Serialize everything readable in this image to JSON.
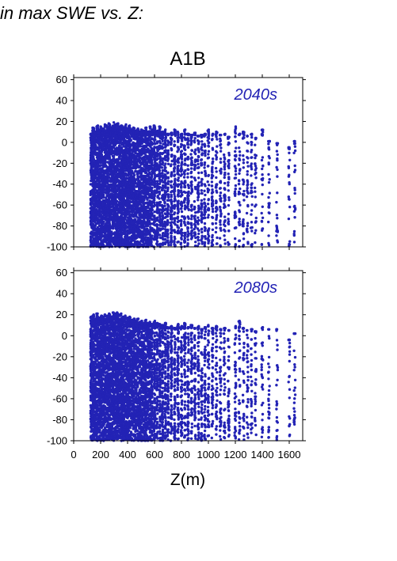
{
  "header": {
    "text": "in max SWE vs. Z:"
  },
  "chart_data": [
    {
      "type": "scatter",
      "title": "A1B",
      "annotation": "2040s",
      "xlabel": "",
      "ylabel": "",
      "xlim": [
        0,
        1700
      ],
      "ylim": [
        -100,
        62
      ],
      "yticks": [
        "60",
        "40",
        "20",
        "0",
        "-20",
        "-40",
        "-60",
        "-80",
        "-100"
      ],
      "xticks": [],
      "grid": false,
      "point_color": "#2323b5",
      "columns": [
        {
          "x": 130,
          "max": 8,
          "n": 150
        },
        {
          "x": 145,
          "max": 14,
          "n": 150
        },
        {
          "x": 160,
          "max": 10,
          "n": 150
        },
        {
          "x": 175,
          "max": 16,
          "n": 150
        },
        {
          "x": 190,
          "max": 12,
          "n": 150
        },
        {
          "x": 205,
          "max": 15,
          "n": 150
        },
        {
          "x": 220,
          "max": 13,
          "n": 150
        },
        {
          "x": 235,
          "max": 17,
          "n": 150
        },
        {
          "x": 250,
          "max": 16,
          "n": 150
        },
        {
          "x": 265,
          "max": 18,
          "n": 150
        },
        {
          "x": 280,
          "max": 14,
          "n": 150
        },
        {
          "x": 295,
          "max": 19,
          "n": 150
        },
        {
          "x": 310,
          "max": 17,
          "n": 150
        },
        {
          "x": 325,
          "max": 18,
          "n": 150
        },
        {
          "x": 340,
          "max": 15,
          "n": 150
        },
        {
          "x": 355,
          "max": 16,
          "n": 150
        },
        {
          "x": 370,
          "max": 14,
          "n": 145
        },
        {
          "x": 385,
          "max": 17,
          "n": 145
        },
        {
          "x": 400,
          "max": 13,
          "n": 140
        },
        {
          "x": 415,
          "max": 16,
          "n": 140
        },
        {
          "x": 430,
          "max": 12,
          "n": 135
        },
        {
          "x": 445,
          "max": 14,
          "n": 135
        },
        {
          "x": 460,
          "max": 11,
          "n": 130
        },
        {
          "x": 475,
          "max": 13,
          "n": 130
        },
        {
          "x": 490,
          "max": 10,
          "n": 125
        },
        {
          "x": 505,
          "max": 12,
          "n": 125
        },
        {
          "x": 520,
          "max": 11,
          "n": 120
        },
        {
          "x": 535,
          "max": 14,
          "n": 120
        },
        {
          "x": 550,
          "max": 10,
          "n": 115
        },
        {
          "x": 565,
          "max": 15,
          "n": 115
        },
        {
          "x": 580,
          "max": 12,
          "n": 110
        },
        {
          "x": 600,
          "max": 16,
          "n": 110
        },
        {
          "x": 620,
          "max": 11,
          "n": 105
        },
        {
          "x": 640,
          "max": 15,
          "n": 100
        },
        {
          "x": 660,
          "max": 10,
          "n": 100
        },
        {
          "x": 680,
          "max": 12,
          "n": 95
        },
        {
          "x": 700,
          "max": 8,
          "n": 90
        },
        {
          "x": 725,
          "max": 9,
          "n": 90
        },
        {
          "x": 750,
          "max": 12,
          "n": 85
        },
        {
          "x": 775,
          "max": 10,
          "n": 80
        },
        {
          "x": 800,
          "max": 8,
          "n": 80
        },
        {
          "x": 825,
          "max": 12,
          "n": 75
        },
        {
          "x": 850,
          "max": 8,
          "n": 70
        },
        {
          "x": 875,
          "max": 7,
          "n": 70
        },
        {
          "x": 900,
          "max": 9,
          "n": 65
        },
        {
          "x": 925,
          "max": 6,
          "n": 65
        },
        {
          "x": 950,
          "max": 7,
          "n": 60
        },
        {
          "x": 975,
          "max": 8,
          "n": 60
        },
        {
          "x": 1000,
          "max": 12,
          "n": 55
        },
        {
          "x": 1030,
          "max": 8,
          "n": 55
        },
        {
          "x": 1060,
          "max": 10,
          "n": 50
        },
        {
          "x": 1090,
          "max": 7,
          "n": 50
        },
        {
          "x": 1120,
          "max": 8,
          "n": 45
        },
        {
          "x": 1150,
          "max": 5,
          "n": 45
        },
        {
          "x": 1200,
          "max": 15,
          "n": 45
        },
        {
          "x": 1230,
          "max": 8,
          "n": 40
        },
        {
          "x": 1260,
          "max": 10,
          "n": 40
        },
        {
          "x": 1290,
          "max": 6,
          "n": 35
        },
        {
          "x": 1320,
          "max": 8,
          "n": 35
        },
        {
          "x": 1350,
          "max": 4,
          "n": 30
        },
        {
          "x": 1400,
          "max": 12,
          "n": 30
        },
        {
          "x": 1450,
          "max": 1,
          "n": 30
        },
        {
          "x": 1510,
          "max": -1,
          "n": 25
        },
        {
          "x": 1600,
          "max": -5,
          "n": 25
        },
        {
          "x": 1640,
          "max": 1,
          "n": 25
        }
      ]
    },
    {
      "type": "scatter",
      "title": "",
      "annotation": "2080s",
      "xlabel": "Z(m)",
      "ylabel": "",
      "xlim": [
        0,
        1700
      ],
      "ylim": [
        -100,
        62
      ],
      "yticks": [
        "60",
        "40",
        "20",
        "0",
        "-20",
        "-40",
        "-60",
        "-80",
        "-100"
      ],
      "xticks": [
        "0",
        "200",
        "400",
        "600",
        "800",
        "1000",
        "1200",
        "1400",
        "1600"
      ],
      "grid": false,
      "point_color": "#2323b5",
      "columns": [
        {
          "x": 130,
          "max": 18,
          "n": 150
        },
        {
          "x": 145,
          "max": 20,
          "n": 150
        },
        {
          "x": 160,
          "max": 16,
          "n": 150
        },
        {
          "x": 175,
          "max": 21,
          "n": 150
        },
        {
          "x": 190,
          "max": 17,
          "n": 150
        },
        {
          "x": 205,
          "max": 19,
          "n": 150
        },
        {
          "x": 220,
          "max": 18,
          "n": 150
        },
        {
          "x": 235,
          "max": 20,
          "n": 150
        },
        {
          "x": 250,
          "max": 19,
          "n": 150
        },
        {
          "x": 265,
          "max": 21,
          "n": 150
        },
        {
          "x": 280,
          "max": 18,
          "n": 150
        },
        {
          "x": 295,
          "max": 22,
          "n": 150
        },
        {
          "x": 310,
          "max": 21,
          "n": 150
        },
        {
          "x": 325,
          "max": 22,
          "n": 150
        },
        {
          "x": 340,
          "max": 20,
          "n": 150
        },
        {
          "x": 355,
          "max": 21,
          "n": 150
        },
        {
          "x": 370,
          "max": 18,
          "n": 145
        },
        {
          "x": 385,
          "max": 19,
          "n": 145
        },
        {
          "x": 400,
          "max": 17,
          "n": 140
        },
        {
          "x": 415,
          "max": 18,
          "n": 140
        },
        {
          "x": 430,
          "max": 15,
          "n": 135
        },
        {
          "x": 445,
          "max": 16,
          "n": 135
        },
        {
          "x": 460,
          "max": 14,
          "n": 130
        },
        {
          "x": 475,
          "max": 16,
          "n": 130
        },
        {
          "x": 490,
          "max": 13,
          "n": 125
        },
        {
          "x": 505,
          "max": 14,
          "n": 125
        },
        {
          "x": 520,
          "max": 12,
          "n": 120
        },
        {
          "x": 535,
          "max": 15,
          "n": 120
        },
        {
          "x": 550,
          "max": 12,
          "n": 115
        },
        {
          "x": 565,
          "max": 13,
          "n": 115
        },
        {
          "x": 580,
          "max": 11,
          "n": 110
        },
        {
          "x": 600,
          "max": 14,
          "n": 110
        },
        {
          "x": 620,
          "max": 12,
          "n": 105
        },
        {
          "x": 640,
          "max": 11,
          "n": 100
        },
        {
          "x": 660,
          "max": 10,
          "n": 100
        },
        {
          "x": 680,
          "max": 12,
          "n": 95
        },
        {
          "x": 700,
          "max": 8,
          "n": 90
        },
        {
          "x": 725,
          "max": 9,
          "n": 90
        },
        {
          "x": 750,
          "max": 7,
          "n": 85
        },
        {
          "x": 775,
          "max": 11,
          "n": 80
        },
        {
          "x": 800,
          "max": 9,
          "n": 80
        },
        {
          "x": 825,
          "max": 12,
          "n": 75
        },
        {
          "x": 850,
          "max": 8,
          "n": 70
        },
        {
          "x": 875,
          "max": 10,
          "n": 70
        },
        {
          "x": 900,
          "max": 7,
          "n": 65
        },
        {
          "x": 925,
          "max": 9,
          "n": 65
        },
        {
          "x": 950,
          "max": 6,
          "n": 60
        },
        {
          "x": 975,
          "max": 8,
          "n": 60
        },
        {
          "x": 1000,
          "max": 10,
          "n": 55
        },
        {
          "x": 1030,
          "max": 7,
          "n": 55
        },
        {
          "x": 1060,
          "max": 9,
          "n": 50
        },
        {
          "x": 1090,
          "max": 6,
          "n": 50
        },
        {
          "x": 1120,
          "max": 7,
          "n": 45
        },
        {
          "x": 1150,
          "max": 5,
          "n": 45
        },
        {
          "x": 1200,
          "max": 9,
          "n": 45
        },
        {
          "x": 1230,
          "max": 14,
          "n": 40
        },
        {
          "x": 1260,
          "max": 7,
          "n": 40
        },
        {
          "x": 1290,
          "max": 5,
          "n": 35
        },
        {
          "x": 1320,
          "max": 6,
          "n": 35
        },
        {
          "x": 1350,
          "max": 4,
          "n": 30
        },
        {
          "x": 1400,
          "max": 8,
          "n": 30
        },
        {
          "x": 1450,
          "max": 6,
          "n": 30
        },
        {
          "x": 1510,
          "max": 6,
          "n": 25
        },
        {
          "x": 1600,
          "max": -4,
          "n": 25
        },
        {
          "x": 1640,
          "max": 2,
          "n": 25
        }
      ]
    }
  ]
}
